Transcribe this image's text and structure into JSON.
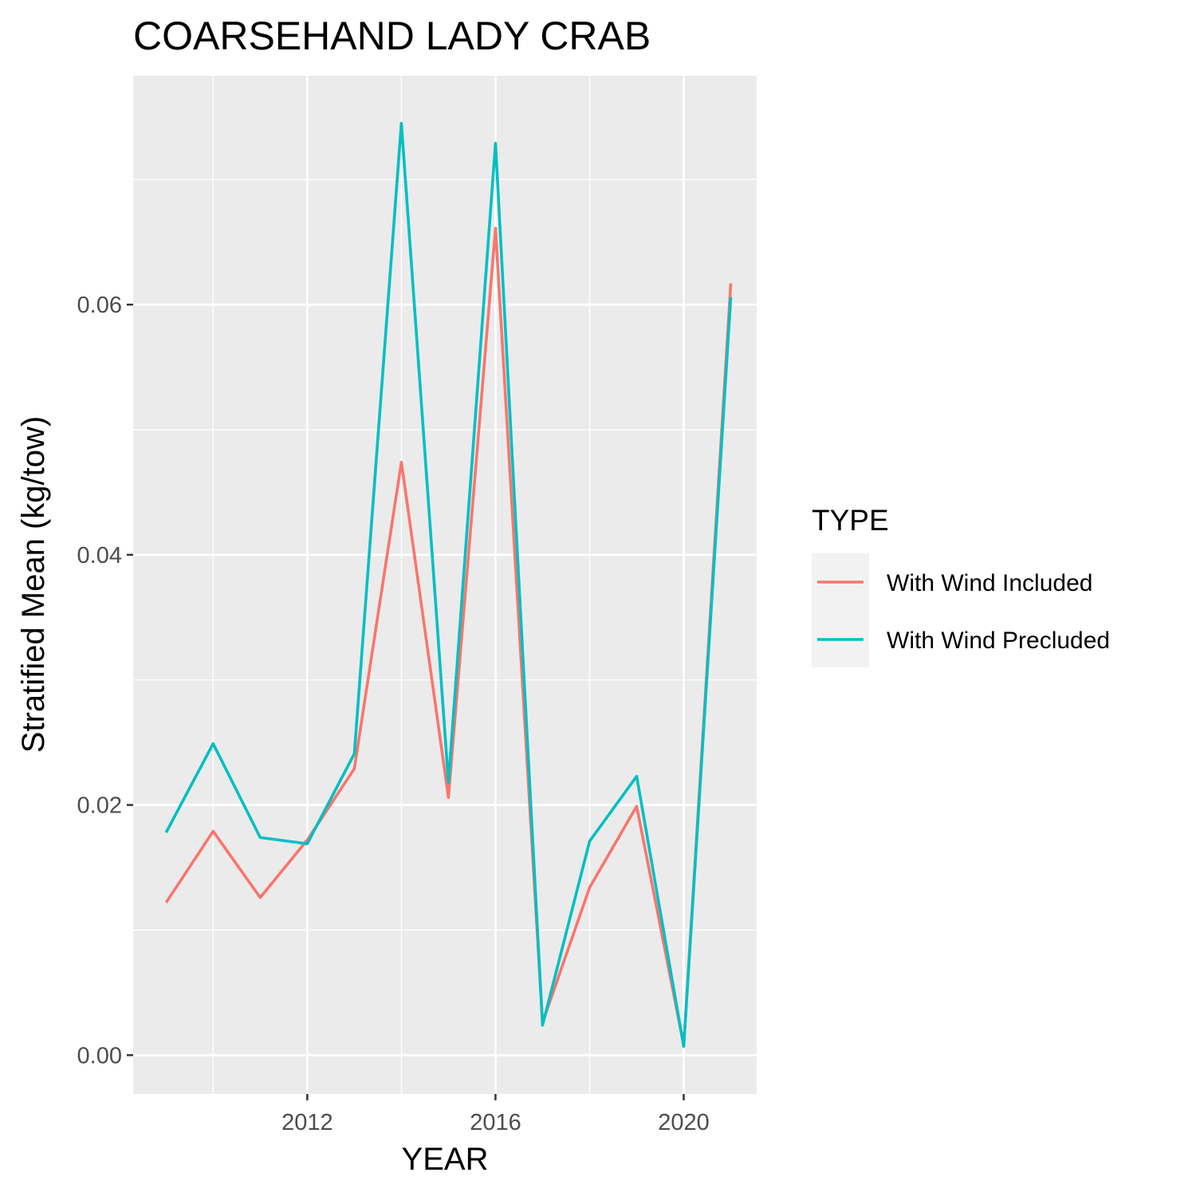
{
  "chart_data": {
    "type": "line",
    "title": "COARSEHAND LADY CRAB",
    "xlabel": "YEAR",
    "ylabel": "Stratified Mean (kg/tow)",
    "x": [
      2009,
      2010,
      2011,
      2012,
      2013,
      2014,
      2015,
      2016,
      2017,
      2018,
      2019,
      2020,
      2021
    ],
    "xlim": [
      2008.3,
      2021.55
    ],
    "ylim": [
      -0.0031,
      0.0783
    ],
    "x_ticks": [
      2012,
      2016,
      2020
    ],
    "x_tick_labels": [
      "2012",
      "2016",
      "2020"
    ],
    "y_ticks": [
      0.0,
      0.02,
      0.04,
      0.06
    ],
    "y_tick_labels": [
      "0.00",
      "0.02",
      "0.04",
      "0.06"
    ],
    "x_minor_ticks": [
      2010,
      2014,
      2018
    ],
    "y_minor_ticks": [
      0.01,
      0.03,
      0.05,
      0.07
    ],
    "grid": true,
    "legend": {
      "title": "TYPE",
      "position": "right"
    },
    "series": [
      {
        "name": "With Wind Included",
        "color": "#F8766D",
        "values": [
          0.0122,
          0.0179,
          0.0126,
          0.0172,
          0.0229,
          0.0474,
          0.0206,
          0.0661,
          0.0026,
          0.0134,
          0.0199,
          0.0008,
          0.0617
        ]
      },
      {
        "name": "With Wind Precluded",
        "color": "#00BFC4",
        "values": [
          0.0178,
          0.0249,
          0.0174,
          0.0169,
          0.0241,
          0.0745,
          0.0218,
          0.0729,
          0.0024,
          0.0171,
          0.0223,
          0.0007,
          0.0606
        ]
      }
    ],
    "colors": {
      "panel_background": "#EBEBEB",
      "grid_major": "#FFFFFF",
      "legend_key_background": "#F2F2F2"
    }
  }
}
